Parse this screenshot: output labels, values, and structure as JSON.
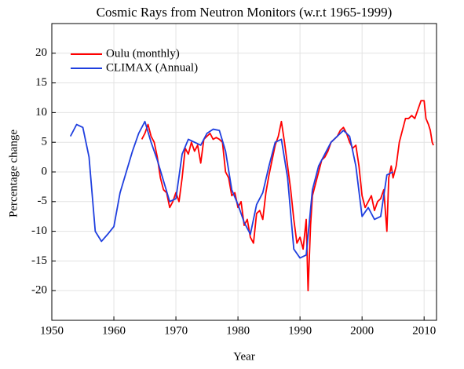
{
  "chart_data": {
    "type": "line",
    "title": "Cosmic Rays from Neutron Monitors (w.r.t 1965-1999)",
    "x_label": "Year",
    "y_label": "Percentage change",
    "xlim": [
      1950,
      2012
    ],
    "ylim": [
      -25,
      25
    ],
    "xticks": [
      1950,
      1960,
      1970,
      1980,
      1990,
      2000,
      2010
    ],
    "yticks": [
      -20,
      -15,
      -10,
      -5,
      0,
      5,
      10,
      15,
      20
    ],
    "grid": true,
    "legend": "upper-left",
    "series": [
      {
        "name": "Oulu (monthly)",
        "color": "#ff0000",
        "x": [
          1964.5,
          1965,
          1965.5,
          1966,
          1966.5,
          1967,
          1967.5,
          1968,
          1968.5,
          1969,
          1969.5,
          1970,
          1970.5,
          1971,
          1971.5,
          1972,
          1972.5,
          1973,
          1973.5,
          1974,
          1974.5,
          1975,
          1975.5,
          1976,
          1976.5,
          1977,
          1977.5,
          1978,
          1978.5,
          1979,
          1979.5,
          1980,
          1980.5,
          1981,
          1981.5,
          1982,
          1982.5,
          1983,
          1983.5,
          1984,
          1984.5,
          1985,
          1985.5,
          1986,
          1986.5,
          1987,
          1987.5,
          1988,
          1988.5,
          1989,
          1989.5,
          1990,
          1990.5,
          1991,
          1991.3,
          1991.7,
          1992,
          1992.5,
          1993,
          1993.5,
          1994,
          1994.5,
          1995,
          1995.5,
          1996,
          1996.5,
          1997,
          1997.5,
          1998,
          1998.5,
          1999,
          1999.5,
          2000,
          2000.5,
          2001,
          2001.5,
          2002,
          2002.5,
          2003,
          2003.5,
          2004,
          2004.3,
          2004.7,
          2005,
          2005.5,
          2006,
          2006.5,
          2007,
          2007.5,
          2008,
          2008.5,
          2009,
          2009.5,
          2010,
          2010.3,
          2010.7,
          2011,
          2011.3,
          2011.5
        ],
        "values": [
          5.5,
          6.5,
          8,
          6,
          5,
          2.5,
          -1,
          -3,
          -3.5,
          -6,
          -5,
          -3.5,
          -5,
          -1,
          4,
          3,
          5,
          3.5,
          4.5,
          1.5,
          5.5,
          6,
          6.5,
          5.5,
          5.8,
          5.5,
          5,
          0,
          -1,
          -4,
          -3.5,
          -6,
          -5,
          -9,
          -8,
          -11,
          -12,
          -7,
          -6.5,
          -8,
          -3.5,
          -0.5,
          2,
          4.5,
          6,
          8.5,
          5,
          1,
          -3,
          -8,
          -12,
          -11,
          -13,
          -8,
          -20,
          -9,
          -4,
          -2,
          0,
          2,
          2.5,
          3.5,
          5,
          5.5,
          6,
          7,
          7.5,
          6.5,
          5,
          4,
          4.5,
          1,
          -4,
          -6,
          -5,
          -4,
          -6.5,
          -5,
          -4.5,
          -3,
          -10,
          -1,
          1,
          -1,
          1,
          5,
          7,
          9,
          9,
          9.5,
          9,
          10.5,
          12,
          12,
          9,
          8,
          7,
          5,
          4.5
        ]
      },
      {
        "name": "CLIMAX (Annual)",
        "color": "#1f3fdf",
        "x": [
          1953,
          1954,
          1955,
          1956,
          1957,
          1958,
          1959,
          1960,
          1961,
          1962,
          1963,
          1964,
          1965,
          1966,
          1967,
          1968,
          1969,
          1970,
          1971,
          1972,
          1973,
          1974,
          1975,
          1976,
          1977,
          1978,
          1979,
          1980,
          1981,
          1982,
          1983,
          1984,
          1985,
          1986,
          1987,
          1988,
          1989,
          1990,
          1991,
          1992,
          1993,
          1994,
          1995,
          1996,
          1997,
          1998,
          1999,
          2000,
          2001,
          2002,
          2003,
          2004,
          2005
        ],
        "values": [
          6,
          8,
          7.5,
          2.5,
          -10,
          -11.7,
          -10.5,
          -9.2,
          -3.5,
          0,
          3.5,
          6.5,
          8.5,
          5,
          2,
          -1.5,
          -5,
          -4.5,
          3,
          5.5,
          5,
          4.5,
          6.5,
          7.2,
          7,
          3.5,
          -3,
          -5.5,
          -8.5,
          -10.5,
          -5.5,
          -3.5,
          1,
          5,
          5.5,
          -1,
          -13,
          -14.5,
          -14,
          -3,
          1,
          3,
          5,
          6,
          7,
          6,
          1,
          -7.5,
          -6,
          -8,
          -7.5,
          -0.5,
          0
        ]
      }
    ]
  }
}
